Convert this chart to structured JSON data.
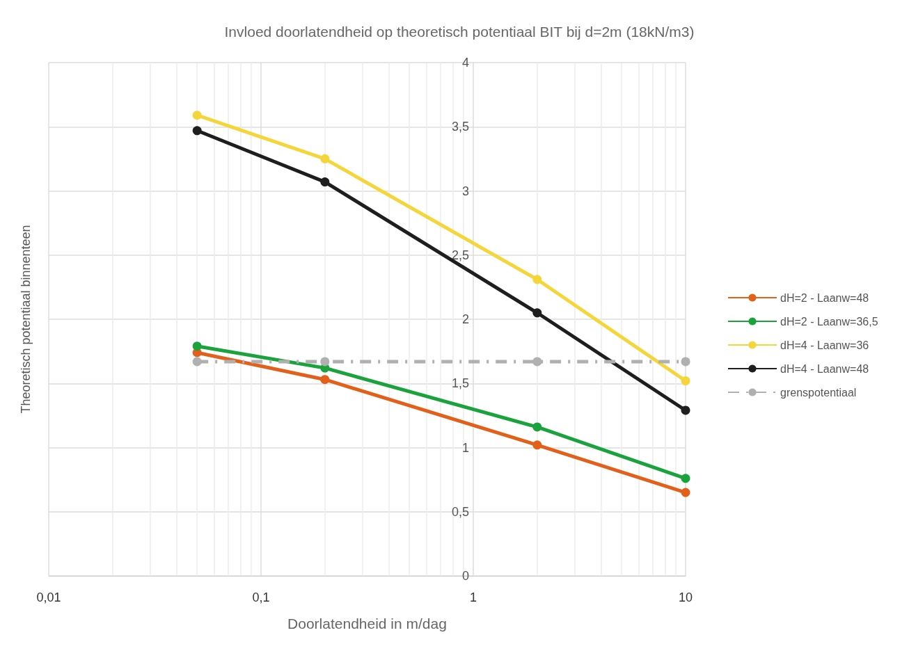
{
  "chart_data": {
    "type": "line",
    "title": "Invloed doorlatendheid op theoretisch potentiaal BIT bij d=2m (18kN/m3)",
    "xlabel": "Doorlatendheid in m/dag",
    "ylabel": "Theoretisch potentiaal binnenteen",
    "log": "x",
    "x": [
      0.05,
      0.2,
      2,
      10
    ],
    "series": [
      {
        "name": "dH=2 - Laanw=48",
        "color": "#e2601a",
        "values": [
          1.74,
          1.53,
          1.02,
          0.65
        ]
      },
      {
        "name": "dH=2 - Laanw=36,5",
        "color": "#1aa33c",
        "values": [
          1.79,
          1.62,
          1.16,
          0.76
        ]
      },
      {
        "name": "dH=4 - Laanw=36",
        "color": "#f5d63a",
        "values": [
          3.59,
          3.25,
          2.31,
          1.52
        ]
      },
      {
        "name": "dH=4 - Laanw=48",
        "color": "#1e1e1e",
        "values": [
          3.47,
          3.07,
          2.05,
          1.29
        ]
      },
      {
        "name": "grenspotentiaal",
        "color": "#b0b0b0",
        "line_style": "dashdot",
        "values": [
          1.67,
          1.67,
          1.67,
          1.67
        ]
      }
    ],
    "xlim": [
      0.01,
      10
    ],
    "xticks": [
      {
        "value": 0.01,
        "label": "0,01"
      },
      {
        "value": 0.1,
        "label": "0,1"
      },
      1,
      10
    ],
    "ylim": [
      0,
      4
    ],
    "yticks": [
      0,
      {
        "value": 0.5,
        "label": "0,5"
      },
      1,
      {
        "value": 1.5,
        "label": "1,5"
      },
      2,
      {
        "value": 2.5,
        "label": "2,5"
      },
      3,
      {
        "value": 3.5,
        "label": "3,5"
      },
      4
    ],
    "grid": true,
    "legend": "right",
    "marker": "circle",
    "line_style": "solid"
  }
}
